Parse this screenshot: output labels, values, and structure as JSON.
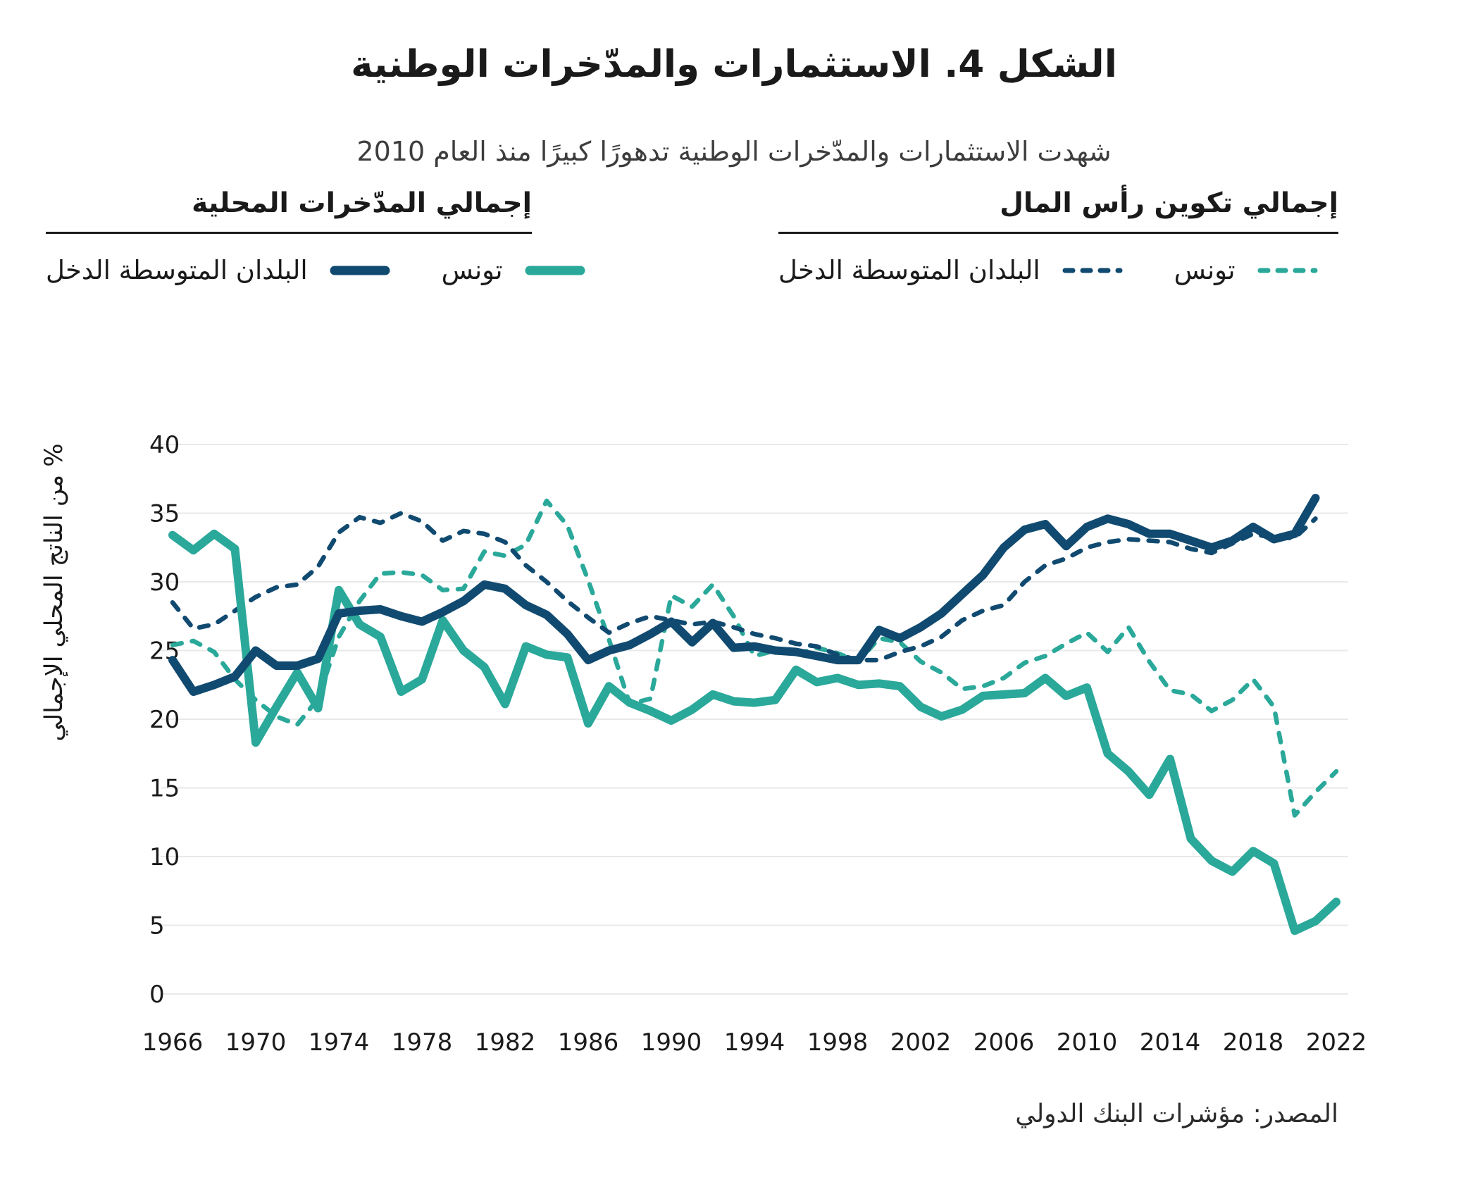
{
  "colors": {
    "teal": "#2aa89a",
    "navy": "#114a70",
    "grid": "#e9e9e9",
    "text": "#1a1a1a"
  },
  "legend": {
    "groups": [
      {
        "title": "إجمالي تكوين رأس المال",
        "style": "dashed",
        "items": [
          {
            "label": "تونس",
            "color": "teal"
          },
          {
            "label": "البلدان المتوسطة الدخل",
            "color": "navy"
          }
        ]
      },
      {
        "title": "إجمالي المدّخرات المحلية",
        "style": "solid",
        "items": [
          {
            "label": "تونس",
            "color": "teal"
          },
          {
            "label": "البلدان المتوسطة الدخل",
            "color": "navy"
          }
        ]
      }
    ]
  },
  "chart_data": {
    "type": "line",
    "title": "الشكل 4. الاستثمارات والمدّخرات الوطنية",
    "subtitle": "شهدت الاستثمارات والمدّخرات الوطنية تدهورًا كبيرًا منذ العام 2010",
    "source": "المصدر: مؤشرات البنك الدولي",
    "xlabel": "",
    "ylabel": "% من الناتج المحلي الإجمالي",
    "ylim": [
      0,
      40
    ],
    "ytick_step": 5,
    "grid": "horizontal",
    "legend_position": "top",
    "x": [
      1966,
      1967,
      1968,
      1969,
      1970,
      1971,
      1972,
      1973,
      1974,
      1975,
      1976,
      1977,
      1978,
      1979,
      1980,
      1981,
      1982,
      1983,
      1984,
      1985,
      1986,
      1987,
      1988,
      1989,
      1990,
      1991,
      1992,
      1993,
      1994,
      1995,
      1996,
      1997,
      1998,
      1999,
      2000,
      2001,
      2002,
      2003,
      2004,
      2005,
      2006,
      2007,
      2008,
      2009,
      2010,
      2011,
      2012,
      2013,
      2014,
      2015,
      2016,
      2017,
      2018,
      2019,
      2020,
      2021,
      2022
    ],
    "xticks": [
      1966,
      1970,
      1974,
      1978,
      1982,
      1986,
      1990,
      1994,
      1998,
      2002,
      2006,
      2010,
      2014,
      2018,
      2022
    ],
    "series": [
      {
        "name": "تونس — إجمالي تكوين رأس المال",
        "color": "teal",
        "dash": true,
        "values": [
          25.4,
          25.7,
          24.9,
          22.9,
          21.4,
          20.2,
          19.6,
          21.5,
          26.0,
          28.6,
          30.6,
          30.7,
          30.5,
          29.4,
          29.5,
          32.2,
          31.9,
          32.7,
          35.9,
          34.1,
          30.1,
          25.8,
          21.1,
          21.5,
          29.0,
          28.2,
          29.8,
          27.5,
          24.6,
          25.0,
          24.7,
          25.2,
          24.8,
          24.2,
          25.9,
          25.6,
          24.2,
          23.4,
          22.2,
          22.4,
          23.0,
          24.1,
          24.6,
          25.5,
          26.3,
          24.9,
          26.7,
          24.2,
          22.1,
          21.8,
          20.6,
          21.4,
          22.9,
          20.9,
          13.0,
          14.7,
          16.2
        ]
      },
      {
        "name": "البلدان المتوسطة الدخل — إجمالي تكوين رأس المال",
        "color": "navy",
        "dash": true,
        "values": [
          28.5,
          26.6,
          26.9,
          27.9,
          28.9,
          29.6,
          29.8,
          31.1,
          33.6,
          34.7,
          34.3,
          35.0,
          34.4,
          33.0,
          33.7,
          33.5,
          32.9,
          31.2,
          30.0,
          28.6,
          27.4,
          26.3,
          27.0,
          27.5,
          27.2,
          26.9,
          27.1,
          26.7,
          26.2,
          25.9,
          25.5,
          25.3,
          24.7,
          24.3,
          24.3,
          24.9,
          25.3,
          26.0,
          27.2,
          27.9,
          28.3,
          30.0,
          31.2,
          31.7,
          32.5,
          32.9,
          33.1,
          33.0,
          32.9,
          32.4,
          32.1,
          32.8,
          33.5,
          33.2,
          33.2,
          34.6,
          null
        ]
      },
      {
        "name": "تونس — إجمالي المدّخرات المحلية",
        "color": "teal",
        "dash": false,
        "values": [
          33.4,
          32.3,
          33.5,
          32.4,
          18.3,
          20.9,
          23.4,
          20.8,
          29.4,
          26.9,
          26.0,
          22.0,
          22.9,
          27.2,
          25.0,
          23.8,
          21.1,
          25.3,
          24.7,
          24.5,
          19.7,
          22.4,
          21.2,
          20.6,
          19.9,
          20.7,
          21.8,
          21.3,
          21.2,
          21.4,
          23.6,
          22.7,
          23.0,
          22.5,
          22.6,
          22.4,
          20.9,
          20.2,
          20.7,
          21.7,
          21.8,
          21.9,
          23.0,
          21.7,
          22.3,
          17.5,
          16.2,
          14.5,
          17.1,
          11.3,
          9.7,
          8.9,
          10.4,
          9.5,
          4.6,
          5.3,
          6.7
        ]
      },
      {
        "name": "البلدان المتوسطة الدخل — إجمالي المدّخرات المحلية",
        "color": "navy",
        "dash": false,
        "values": [
          24.3,
          22.0,
          22.5,
          23.1,
          25.0,
          23.9,
          23.9,
          24.4,
          27.7,
          27.9,
          28.0,
          27.5,
          27.1,
          27.8,
          28.6,
          29.8,
          29.5,
          28.3,
          27.6,
          26.2,
          24.3,
          25.0,
          25.4,
          26.2,
          27.1,
          25.6,
          27.0,
          25.2,
          25.3,
          25.0,
          24.9,
          24.6,
          24.3,
          24.3,
          26.5,
          25.9,
          26.7,
          27.7,
          29.1,
          30.5,
          32.5,
          33.8,
          34.2,
          32.6,
          34.0,
          34.6,
          34.2,
          33.5,
          33.5,
          33.0,
          32.5,
          33.0,
          34.0,
          33.1,
          33.5,
          36.1,
          null
        ]
      }
    ]
  }
}
